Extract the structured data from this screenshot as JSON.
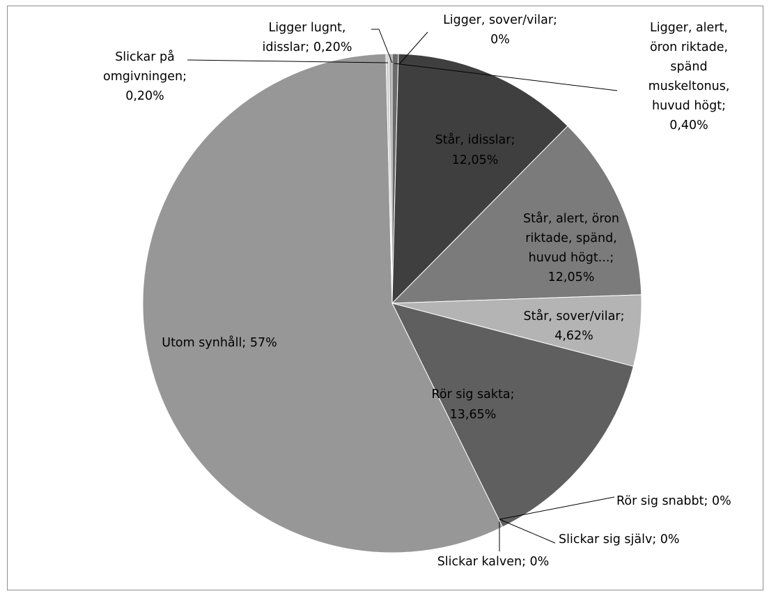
{
  "chart_data": {
    "type": "pie",
    "title": "",
    "slices": [
      {
        "name": "Ligger, sover/vilar",
        "value": 0,
        "display": "0%",
        "color": "#7f7f7f"
      },
      {
        "name": "Ligger, alert, öron riktade, spänd muskeltonus, huvud högt",
        "value": 0.4,
        "display": "0,40%",
        "color": "#6b6b6b"
      },
      {
        "name": "Står, idisslar",
        "value": 12.05,
        "display": "12,05%",
        "color": "#3f3f3f"
      },
      {
        "name": "Står, alert, öron riktade, spänd, huvud högt...",
        "value": 12.05,
        "display": "12,05%",
        "color": "#7b7b7b"
      },
      {
        "name": "Står, sover/vilar",
        "value": 4.62,
        "display": "4,62%",
        "color": "#b4b4b4"
      },
      {
        "name": "Rör sig sakta",
        "value": 13.65,
        "display": "13,65%",
        "color": "#5f5f5f"
      },
      {
        "name": "Rör sig snabbt",
        "value": 0,
        "display": "0%",
        "color": "#4a4a4a"
      },
      {
        "name": "Slickar sig själv",
        "value": 0,
        "display": "0%",
        "color": "#8a8a8a"
      },
      {
        "name": "Slickar kalven",
        "value": 0,
        "display": "0%",
        "color": "#a0a0a0"
      },
      {
        "name": "Utom synhåll",
        "value": 57,
        "display": "57%",
        "color": "#979797"
      },
      {
        "name": "Slickar på omgivningen",
        "value": 0.2,
        "display": "0,20%",
        "color": "#d0d0d0"
      },
      {
        "name": "Ligger lugnt, idisslar",
        "value": 0.2,
        "display": "0,20%",
        "color": "#a8a8a8"
      }
    ],
    "labels": [
      {
        "lines": [
          "Ligger, sover/vilar;",
          "0%"
        ]
      },
      {
        "lines": [
          "Ligger, alert,",
          "öron riktade,",
          "spänd",
          "muskeltonus,",
          "huvud högt;",
          "0,40%"
        ]
      },
      {
        "lines": [
          "Står, idisslar;",
          "12,05%"
        ]
      },
      {
        "lines": [
          "Står, alert, öron",
          "riktade, spänd,",
          "huvud högt...;",
          "12,05%"
        ]
      },
      {
        "lines": [
          "Står, sover/vilar;",
          "4,62%"
        ]
      },
      {
        "lines": [
          "Rör sig sakta;",
          "13,65%"
        ]
      },
      {
        "lines": [
          "Rör sig snabbt; 0%"
        ]
      },
      {
        "lines": [
          "Slickar sig själv; 0%"
        ]
      },
      {
        "lines": [
          "Slickar kalven; 0%"
        ]
      },
      {
        "lines": [
          "Utom synhåll; 57%"
        ]
      },
      {
        "lines": [
          "Slickar på",
          "omgivningen;",
          "0,20%"
        ]
      },
      {
        "lines": [
          "Ligger lugnt,",
          "idisslar; 0,20%"
        ]
      }
    ],
    "legend": "none",
    "start_angle_deg": 0,
    "direction": "clockwise"
  }
}
